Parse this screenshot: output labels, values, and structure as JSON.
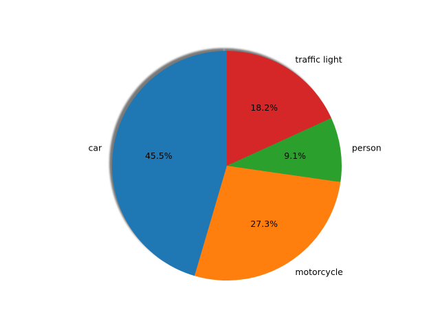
{
  "chart_data": {
    "type": "pie",
    "labels": [
      "car",
      "motorcycle",
      "person",
      "traffic light"
    ],
    "values": [
      45.5,
      27.3,
      9.1,
      18.2
    ],
    "percent_labels": [
      "45.5%",
      "27.3%",
      "9.1%",
      "18.2%"
    ],
    "colors": [
      "#1f77b4",
      "#ff7f0e",
      "#2ca02c",
      "#d62728"
    ],
    "start_angle_deg": 90,
    "direction": "counterclockwise",
    "shadow": true,
    "legend": "none"
  }
}
